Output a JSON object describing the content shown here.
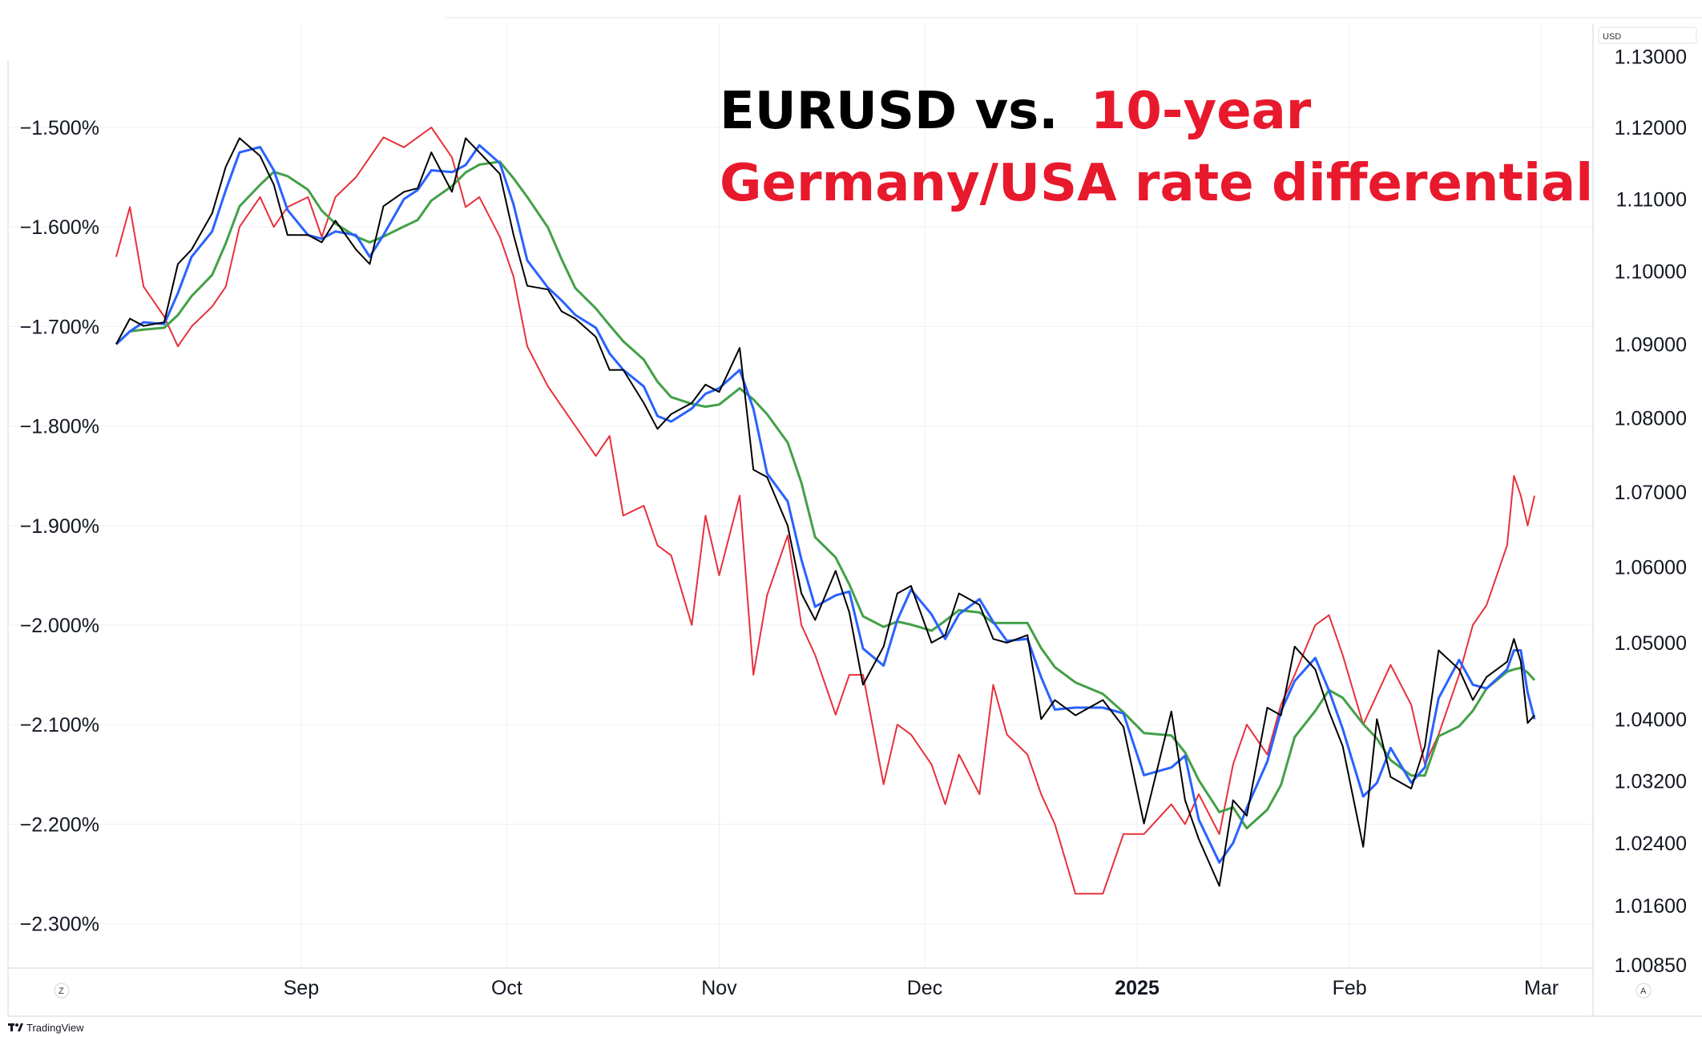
{
  "chart_data": {
    "type": "line",
    "title_part1": "EURUSD vs.",
    "title_part2": "10-year",
    "title_line2": "Germany/USA rate differential",
    "colors": {
      "title_black": "#000000",
      "title_red": "#e8192c",
      "rate_series": "#e8303c",
      "eurusd_series": "#000000",
      "ma_fast": "#2962ff",
      "ma_slow": "#43a047",
      "grid": "#eef0f3"
    },
    "x_ticks": [
      {
        "label": "Sep",
        "date": "2024-09-01",
        "bold": false
      },
      {
        "label": "Oct",
        "date": "2024-10-01",
        "bold": false
      },
      {
        "label": "Nov",
        "date": "2024-11-01",
        "bold": false
      },
      {
        "label": "Dec",
        "date": "2024-12-01",
        "bold": false
      },
      {
        "label": "2025",
        "date": "2025-01-01",
        "bold": true
      },
      {
        "label": "Feb",
        "date": "2025-02-01",
        "bold": false
      },
      {
        "label": "Mar",
        "date": "2025-03-01",
        "bold": false
      }
    ],
    "left_axis": {
      "label": "",
      "ticks": [
        "−1.500%",
        "−1.600%",
        "−1.700%",
        "−1.800%",
        "−1.900%",
        "−2.000%",
        "−2.100%",
        "−2.200%",
        "−2.300%"
      ],
      "tick_values": [
        -1.5,
        -1.6,
        -1.7,
        -1.8,
        -1.9,
        -2.0,
        -2.1,
        -2.2,
        -2.3
      ]
    },
    "right_axis": {
      "unit": "USD",
      "ticks": [
        "1.13000",
        "1.12000",
        "1.11000",
        "1.10000",
        "1.09000",
        "1.08000",
        "1.07000",
        "1.06000",
        "1.05000",
        "1.04000",
        "1.03200",
        "1.02400",
        "1.01600",
        "1.00850"
      ],
      "tick_values": [
        1.13,
        1.12,
        1.11,
        1.1,
        1.09,
        1.08,
        1.07,
        1.06,
        1.05,
        1.04,
        1.032,
        1.024,
        1.016,
        1.0085
      ],
      "scale": "log"
    },
    "corner_left": "Z",
    "corner_right": "A",
    "series": [
      {
        "name": "",
        "axis": "left",
        "points": [
          [
            "2024-08-05",
            -1.63
          ],
          [
            "2024-08-07",
            -1.58
          ],
          [
            "2024-08-09",
            -1.66
          ],
          [
            "2024-08-12",
            -1.69
          ],
          [
            "2024-08-14",
            -1.72
          ],
          [
            "2024-08-16",
            -1.7
          ],
          [
            "2024-08-19",
            -1.68
          ],
          [
            "2024-08-21",
            -1.66
          ],
          [
            "2024-08-23",
            -1.6
          ],
          [
            "2024-08-26",
            -1.57
          ],
          [
            "2024-08-28",
            -1.6
          ],
          [
            "2024-08-30",
            -1.58
          ],
          [
            "2024-09-02",
            -1.57
          ],
          [
            "2024-09-04",
            -1.61
          ],
          [
            "2024-09-06",
            -1.57
          ],
          [
            "2024-09-09",
            -1.55
          ],
          [
            "2024-09-11",
            -1.53
          ],
          [
            "2024-09-13",
            -1.51
          ],
          [
            "2024-09-16",
            -1.52
          ],
          [
            "2024-09-18",
            -1.51
          ],
          [
            "2024-09-20",
            -1.5
          ],
          [
            "2024-09-23",
            -1.53
          ],
          [
            "2024-09-25",
            -1.58
          ],
          [
            "2024-09-27",
            -1.57
          ],
          [
            "2024-09-30",
            -1.61
          ],
          [
            "2024-10-02",
            -1.65
          ],
          [
            "2024-10-04",
            -1.72
          ],
          [
            "2024-10-07",
            -1.76
          ],
          [
            "2024-10-09",
            -1.78
          ],
          [
            "2024-10-11",
            -1.8
          ],
          [
            "2024-10-14",
            -1.83
          ],
          [
            "2024-10-16",
            -1.81
          ],
          [
            "2024-10-18",
            -1.89
          ],
          [
            "2024-10-21",
            -1.88
          ],
          [
            "2024-10-23",
            -1.92
          ],
          [
            "2024-10-25",
            -1.93
          ],
          [
            "2024-10-28",
            -2.0
          ],
          [
            "2024-10-30",
            -1.89
          ],
          [
            "2024-11-01",
            -1.95
          ],
          [
            "2024-11-04",
            -1.87
          ],
          [
            "2024-11-06",
            -2.05
          ],
          [
            "2024-11-08",
            -1.97
          ],
          [
            "2024-11-11",
            -1.91
          ],
          [
            "2024-11-13",
            -2.0
          ],
          [
            "2024-11-15",
            -2.03
          ],
          [
            "2024-11-18",
            -2.09
          ],
          [
            "2024-11-20",
            -2.05
          ],
          [
            "2024-11-22",
            -2.05
          ],
          [
            "2024-11-25",
            -2.16
          ],
          [
            "2024-11-27",
            -2.1
          ],
          [
            "2024-11-29",
            -2.11
          ],
          [
            "2024-12-02",
            -2.14
          ],
          [
            "2024-12-04",
            -2.18
          ],
          [
            "2024-12-06",
            -2.13
          ],
          [
            "2024-12-09",
            -2.17
          ],
          [
            "2024-12-11",
            -2.06
          ],
          [
            "2024-12-13",
            -2.11
          ],
          [
            "2024-12-16",
            -2.13
          ],
          [
            "2024-12-18",
            -2.17
          ],
          [
            "2024-12-20",
            -2.2
          ],
          [
            "2024-12-23",
            -2.27
          ],
          [
            "2024-12-27",
            -2.27
          ],
          [
            "2024-12-30",
            -2.21
          ],
          [
            "2025-01-02",
            -2.21
          ],
          [
            "2025-01-06",
            -2.18
          ],
          [
            "2025-01-08",
            -2.2
          ],
          [
            "2025-01-10",
            -2.17
          ],
          [
            "2025-01-13",
            -2.21
          ],
          [
            "2025-01-15",
            -2.14
          ],
          [
            "2025-01-17",
            -2.1
          ],
          [
            "2025-01-20",
            -2.13
          ],
          [
            "2025-01-22",
            -2.08
          ],
          [
            "2025-01-24",
            -2.05
          ],
          [
            "2025-01-27",
            -2.0
          ],
          [
            "2025-01-29",
            -1.99
          ],
          [
            "2025-01-31",
            -2.03
          ],
          [
            "2025-02-03",
            -2.1
          ],
          [
            "2025-02-05",
            -2.07
          ],
          [
            "2025-02-07",
            -2.04
          ],
          [
            "2025-02-10",
            -2.08
          ],
          [
            "2025-02-12",
            -2.14
          ],
          [
            "2025-02-14",
            -2.11
          ],
          [
            "2025-02-17",
            -2.05
          ],
          [
            "2025-02-19",
            -2.0
          ],
          [
            "2025-02-21",
            -1.98
          ],
          [
            "2025-02-24",
            -1.92
          ],
          [
            "2025-02-25",
            -1.85
          ],
          [
            "2025-02-26",
            -1.87
          ],
          [
            "2025-02-27",
            -1.9
          ],
          [
            "2025-02-28",
            -1.87
          ]
        ]
      },
      {
        "name": "",
        "axis": "right",
        "points": [
          [
            "2024-08-05",
            1.09
          ],
          [
            "2024-08-07",
            1.0935
          ],
          [
            "2024-08-09",
            1.0925
          ],
          [
            "2024-08-12",
            1.093
          ],
          [
            "2024-08-14",
            1.101
          ],
          [
            "2024-08-16",
            1.103
          ],
          [
            "2024-08-19",
            1.108
          ],
          [
            "2024-08-21",
            1.1145
          ],
          [
            "2024-08-23",
            1.1185
          ],
          [
            "2024-08-26",
            1.116
          ],
          [
            "2024-08-28",
            1.112
          ],
          [
            "2024-08-30",
            1.105
          ],
          [
            "2024-09-02",
            1.105
          ],
          [
            "2024-09-04",
            1.104
          ],
          [
            "2024-09-06",
            1.107
          ],
          [
            "2024-09-09",
            1.103
          ],
          [
            "2024-09-11",
            1.101
          ],
          [
            "2024-09-13",
            1.109
          ],
          [
            "2024-09-16",
            1.111
          ],
          [
            "2024-09-18",
            1.1115
          ],
          [
            "2024-09-20",
            1.1165
          ],
          [
            "2024-09-23",
            1.111
          ],
          [
            "2024-09-25",
            1.1185
          ],
          [
            "2024-09-27",
            1.1165
          ],
          [
            "2024-09-30",
            1.1135
          ],
          [
            "2024-10-02",
            1.105
          ],
          [
            "2024-10-04",
            1.098
          ],
          [
            "2024-10-07",
            1.0975
          ],
          [
            "2024-10-09",
            1.0945
          ],
          [
            "2024-10-11",
            1.0935
          ],
          [
            "2024-10-14",
            1.091
          ],
          [
            "2024-10-16",
            1.0865
          ],
          [
            "2024-10-18",
            1.0865
          ],
          [
            "2024-10-21",
            1.082
          ],
          [
            "2024-10-23",
            1.0785
          ],
          [
            "2024-10-25",
            1.0805
          ],
          [
            "2024-10-28",
            1.082
          ],
          [
            "2024-10-30",
            1.0845
          ],
          [
            "2024-11-01",
            1.0835
          ],
          [
            "2024-11-04",
            1.0895
          ],
          [
            "2024-11-06",
            1.073
          ],
          [
            "2024-11-08",
            1.072
          ],
          [
            "2024-11-11",
            1.0655
          ],
          [
            "2024-11-13",
            1.0565
          ],
          [
            "2024-11-15",
            1.053
          ],
          [
            "2024-11-18",
            1.0595
          ],
          [
            "2024-11-20",
            1.054
          ],
          [
            "2024-11-22",
            1.0445
          ],
          [
            "2024-11-25",
            1.0495
          ],
          [
            "2024-11-27",
            1.0565
          ],
          [
            "2024-11-29",
            1.0575
          ],
          [
            "2024-12-02",
            1.05
          ],
          [
            "2024-12-04",
            1.051
          ],
          [
            "2024-12-06",
            1.0565
          ],
          [
            "2024-12-09",
            1.055
          ],
          [
            "2024-12-11",
            1.0505
          ],
          [
            "2024-12-13",
            1.05
          ],
          [
            "2024-12-16",
            1.051
          ],
          [
            "2024-12-18",
            1.04
          ],
          [
            "2024-12-20",
            1.0425
          ],
          [
            "2024-12-23",
            1.0405
          ],
          [
            "2024-12-27",
            1.0425
          ],
          [
            "2024-12-30",
            1.039
          ],
          [
            "2025-01-02",
            1.0265
          ],
          [
            "2025-01-06",
            1.041
          ],
          [
            "2025-01-08",
            1.0295
          ],
          [
            "2025-01-10",
            1.0245
          ],
          [
            "2025-01-13",
            1.0185
          ],
          [
            "2025-01-15",
            1.0295
          ],
          [
            "2025-01-17",
            1.0275
          ],
          [
            "2025-01-20",
            1.0415
          ],
          [
            "2025-01-22",
            1.0405
          ],
          [
            "2025-01-24",
            1.0495
          ],
          [
            "2025-01-27",
            1.0465
          ],
          [
            "2025-01-29",
            1.041
          ],
          [
            "2025-01-31",
            1.0365
          ],
          [
            "2025-02-03",
            1.0235
          ],
          [
            "2025-02-05",
            1.04
          ],
          [
            "2025-02-07",
            1.0325
          ],
          [
            "2025-02-10",
            1.031
          ],
          [
            "2025-02-12",
            1.0365
          ],
          [
            "2025-02-14",
            1.049
          ],
          [
            "2025-02-17",
            1.0465
          ],
          [
            "2025-02-19",
            1.0425
          ],
          [
            "2025-02-21",
            1.0455
          ],
          [
            "2025-02-24",
            1.0475
          ],
          [
            "2025-02-25",
            1.0505
          ],
          [
            "2025-02-26",
            1.0475
          ],
          [
            "2025-02-27",
            1.0395
          ],
          [
            "2025-02-28",
            1.0405
          ]
        ]
      }
    ]
  },
  "footer": {
    "brand": "TradingView"
  }
}
